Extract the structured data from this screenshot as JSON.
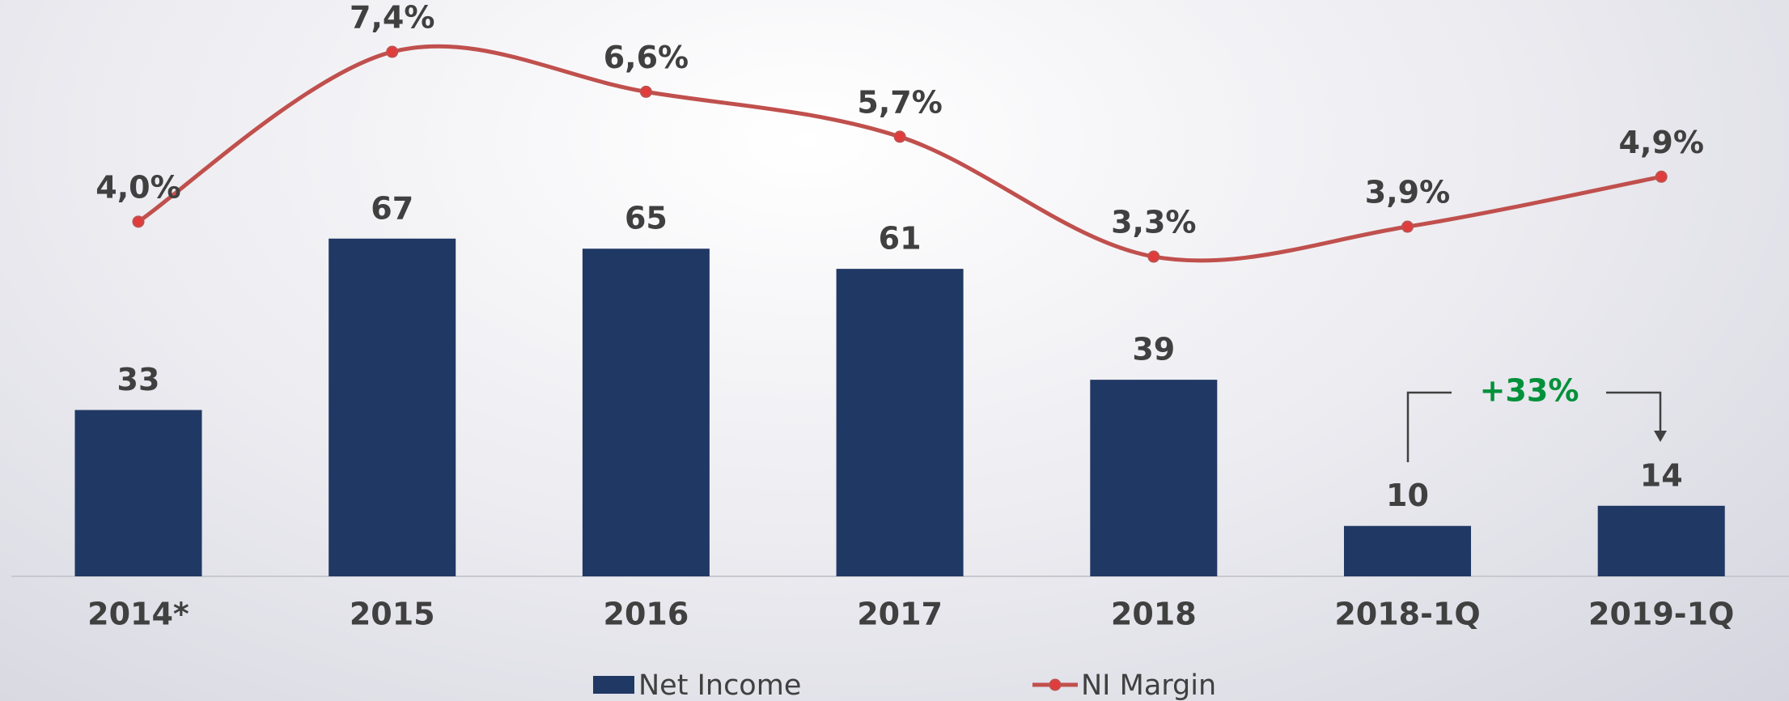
{
  "chart_data": {
    "type": "combo",
    "categories": [
      "2014*",
      "2015",
      "2016",
      "2017",
      "2018",
      "2018-1Q",
      "2019-1Q"
    ],
    "series": [
      {
        "name": "Net Income",
        "type": "bar",
        "color": "#203864",
        "values": [
          33,
          67,
          65,
          61,
          39,
          10,
          14
        ]
      },
      {
        "name": "NI Margin",
        "type": "line",
        "axis": "y2",
        "color": "#c0504d",
        "values": [
          4.0,
          7.4,
          6.6,
          5.7,
          3.3,
          3.9,
          4.9
        ],
        "value_labels": [
          "4,0%",
          "7,4%",
          "6,6%",
          "5,7%",
          "3,3%",
          "3,9%",
          "4,9%"
        ]
      }
    ],
    "ylim": [
      0,
      110
    ],
    "y2lim": [
      -3.1,
      8.0
    ],
    "annotation": "+33%",
    "annotation_color": "#00913a",
    "legend": "bottom"
  }
}
